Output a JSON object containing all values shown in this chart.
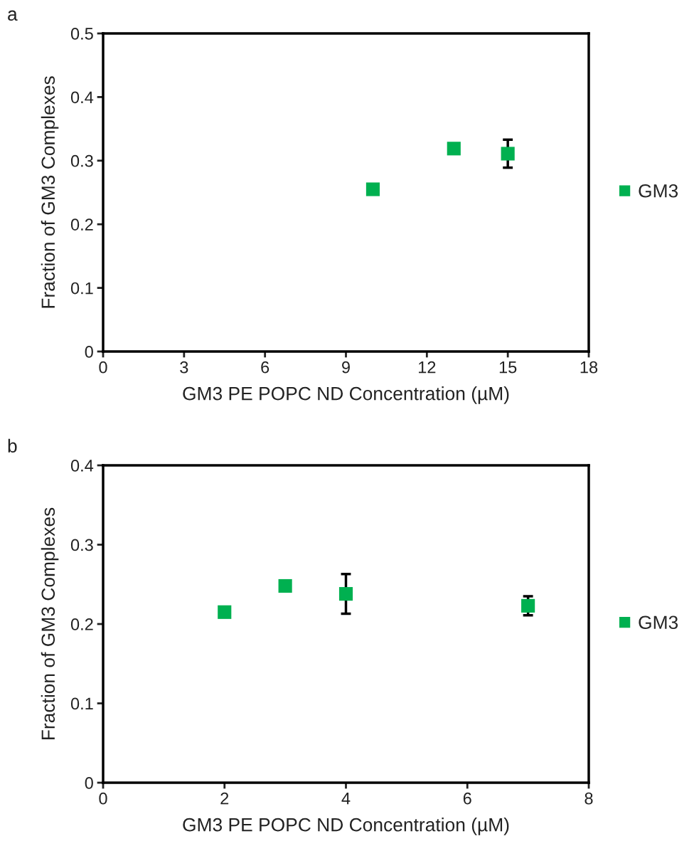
{
  "chart_data": [
    {
      "type": "scatter",
      "annotations": [
        "a"
      ],
      "xlabel": "GM3 PE POPC ND Concentration (µM)",
      "ylabel": "Fraction of GM3 Complexes",
      "x": [
        10,
        13,
        15
      ],
      "marker": "square",
      "legend": "right",
      "grid": false,
      "series": [
        {
          "name": "GM3",
          "color": "#00b050",
          "values": [
            0.255,
            0.319,
            0.311
          ],
          "errors": [
            null,
            null,
            0.022
          ]
        }
      ],
      "xlim": [
        0,
        18
      ],
      "xticks": [
        0,
        3,
        6,
        9,
        12,
        15,
        18
      ],
      "ylim": [
        0,
        0.5
      ],
      "yticks": [
        0,
        0.1,
        0.2,
        0.3,
        0.4,
        0.5
      ]
    },
    {
      "type": "scatter",
      "annotations": [
        "b"
      ],
      "xlabel": "GM3 PE POPC ND Concentration (µM)",
      "ylabel": "Fraction of GM3 Complexes",
      "x": [
        2,
        3,
        4,
        7
      ],
      "marker": "square",
      "legend": "right",
      "grid": false,
      "series": [
        {
          "name": "GM3",
          "color": "#00b050",
          "values": [
            0.215,
            0.248,
            0.238,
            0.223
          ],
          "errors": [
            null,
            null,
            0.025,
            0.012
          ]
        }
      ],
      "xlim": [
        0,
        8
      ],
      "xticks": [
        0,
        2,
        4,
        6,
        8
      ],
      "ylim": [
        0,
        0.4
      ],
      "yticks": [
        0,
        0.1,
        0.2,
        0.3,
        0.4
      ]
    }
  ]
}
